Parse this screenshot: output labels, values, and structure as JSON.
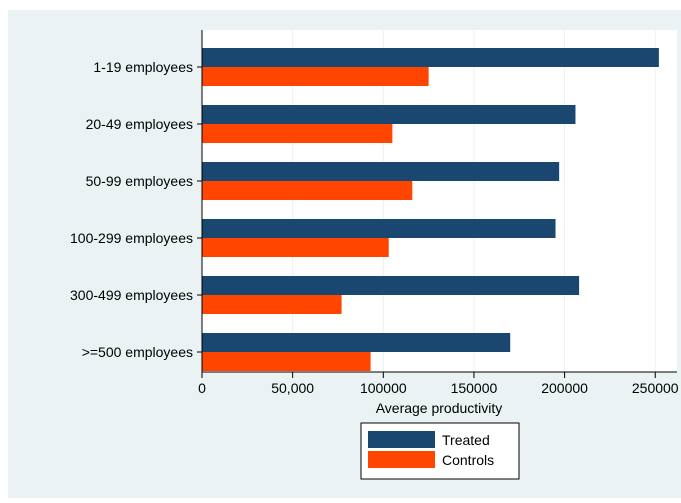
{
  "chart_data": {
    "type": "bar",
    "orientation": "horizontal",
    "categories": [
      "1-19 employees",
      "20-49 employees",
      "50-99 employees",
      "100-299 employees",
      "300-499 employees",
      ">=500 employees"
    ],
    "series": [
      {
        "name": "Treated",
        "color": "#1a476f",
        "values": [
          252000,
          206000,
          197000,
          195000,
          208000,
          170000
        ]
      },
      {
        "name": "Controls",
        "color": "#ff4500",
        "values": [
          125000,
          105000,
          116000,
          103000,
          77000,
          93000
        ]
      }
    ],
    "xlabel": "Average productivity",
    "xlim": [
      0,
      262000
    ],
    "x_ticks": [
      0,
      50000,
      100000,
      150000,
      200000,
      250000
    ],
    "x_tick_labels": [
      "0",
      "50,000",
      "100000",
      "150000",
      "200000",
      "250000"
    ],
    "grid": true,
    "legend_position": "bottom-center"
  },
  "colors": {
    "outer_background": "#eaf2f3",
    "plot_background": "#ffffff",
    "grid": "#eaf2f3",
    "axis": "#000000"
  }
}
